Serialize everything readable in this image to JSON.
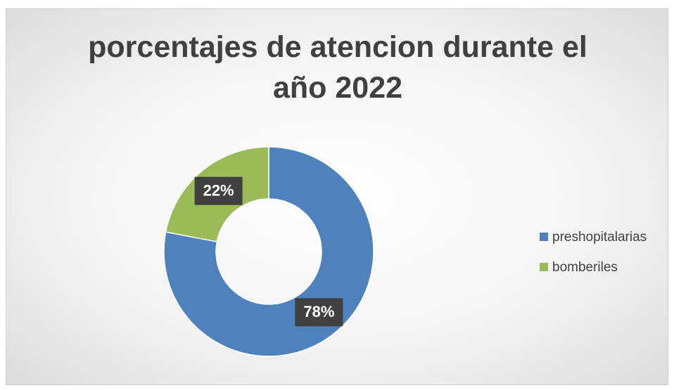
{
  "chart_data": {
    "type": "doughnut",
    "title": "porcentajes de atencion durante el año 2022",
    "categories": [
      "preshopitalarias",
      "bomberiles"
    ],
    "values": [
      78,
      22
    ],
    "value_labels": [
      "78%",
      "22%"
    ],
    "colors": [
      "#4f81bd",
      "#9bbb59"
    ],
    "legend": "right"
  }
}
